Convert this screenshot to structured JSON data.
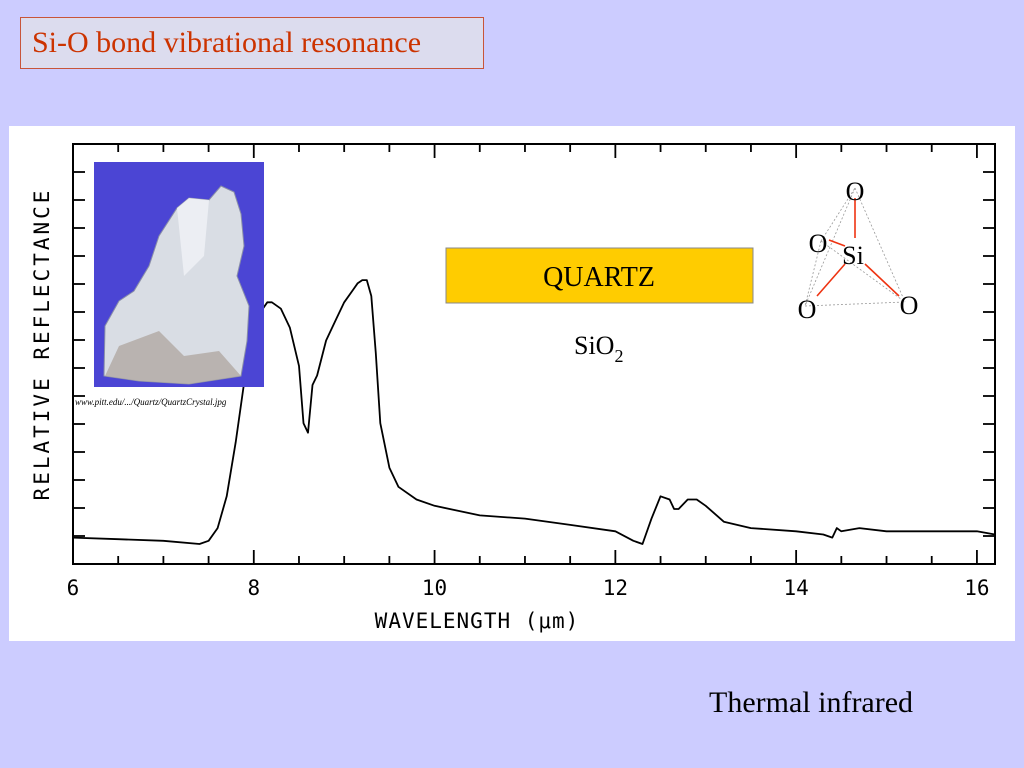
{
  "slide": {
    "title": "Si-O bond vibrational resonance",
    "footer": "Thermal infrared"
  },
  "photo": {
    "caption": "www.pitt.edu/.../Quartz/QuartzCrystal.jpg",
    "colors": {
      "background": "#4b45d4",
      "crystal": "#d9dde4"
    }
  },
  "mineral": {
    "name": "QUARTZ",
    "formula_base": "SiO",
    "formula_sub": "2",
    "label_color": "#ffcc00"
  },
  "molecule": {
    "center_atom": "Si",
    "top_atom": "O",
    "left_atom": "O",
    "bottom_left_atom": "O",
    "right_atom": "O",
    "bond_color": "#ee3311"
  },
  "chart_data": {
    "type": "line",
    "xlabel": "WAVELENGTH  (μm)",
    "ylabel": "RELATIVE REFLECTANCE",
    "xlim": [
      6,
      16.2
    ],
    "ylim": [
      0,
      1
    ],
    "xticks": [
      6,
      8,
      10,
      12,
      14,
      16
    ],
    "grid": false,
    "series": [
      {
        "x": [
          6.0,
          6.5,
          7.0,
          7.4,
          7.5,
          7.6,
          7.7,
          7.8,
          7.9,
          8.0,
          8.05,
          8.1,
          8.15,
          8.2,
          8.3,
          8.4,
          8.5,
          8.55,
          8.6,
          8.65,
          8.7,
          8.8,
          8.9,
          9.0,
          9.1,
          9.15,
          9.2,
          9.25,
          9.3,
          9.35,
          9.4,
          9.5,
          9.6,
          9.8,
          10.0,
          10.5,
          11.0,
          11.5,
          12.0,
          12.2,
          12.3,
          12.4,
          12.5,
          12.6,
          12.65,
          12.7,
          12.8,
          12.9,
          13.0,
          13.2,
          13.5,
          14.0,
          14.3,
          14.4,
          14.45,
          14.5,
          14.7,
          15.0,
          15.5,
          16.0,
          16.2
        ],
        "y": [
          0.02,
          0.015,
          0.01,
          0.0,
          0.01,
          0.05,
          0.15,
          0.32,
          0.52,
          0.68,
          0.74,
          0.74,
          0.76,
          0.76,
          0.74,
          0.68,
          0.56,
          0.38,
          0.35,
          0.5,
          0.53,
          0.64,
          0.7,
          0.76,
          0.8,
          0.82,
          0.83,
          0.83,
          0.78,
          0.6,
          0.38,
          0.24,
          0.18,
          0.14,
          0.12,
          0.09,
          0.08,
          0.06,
          0.04,
          0.01,
          0.0,
          0.08,
          0.15,
          0.14,
          0.11,
          0.11,
          0.14,
          0.14,
          0.12,
          0.07,
          0.05,
          0.04,
          0.03,
          0.02,
          0.05,
          0.04,
          0.05,
          0.04,
          0.04,
          0.04,
          0.03
        ]
      }
    ]
  }
}
